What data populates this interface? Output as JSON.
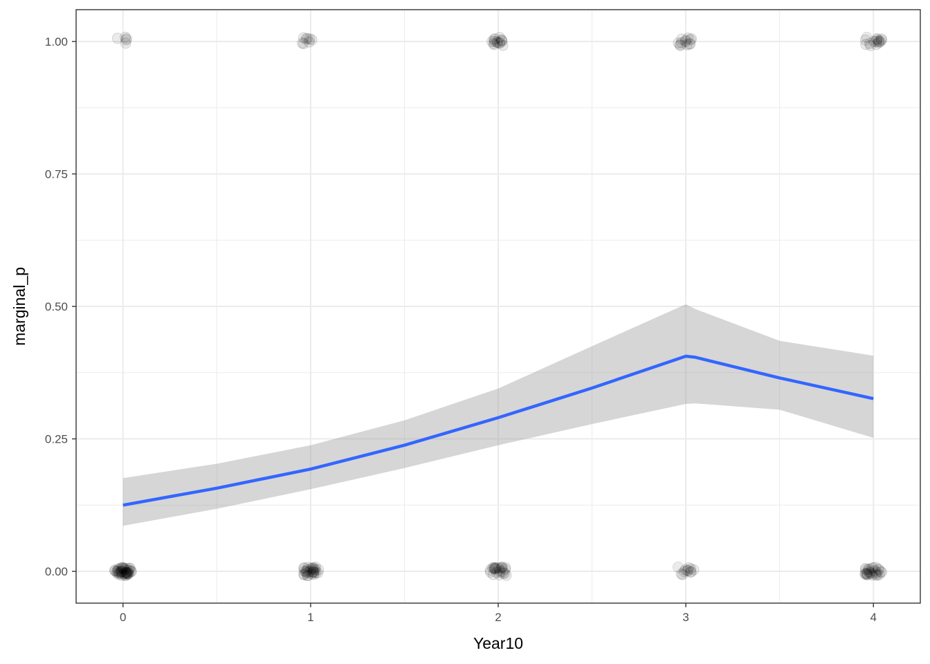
{
  "chart_data": {
    "type": "scatter",
    "title": "",
    "xlabel": "Year10",
    "ylabel": "marginal_p",
    "xlim": [
      -0.25,
      4.25
    ],
    "ylim": [
      -0.06,
      1.06
    ],
    "x_ticks": [
      {
        "value": 0,
        "label": "0"
      },
      {
        "value": 1,
        "label": "1"
      },
      {
        "value": 2,
        "label": "2"
      },
      {
        "value": 3,
        "label": "3"
      },
      {
        "value": 4,
        "label": "4"
      }
    ],
    "y_ticks": [
      {
        "value": 0,
        "label": "0.00"
      },
      {
        "value": 0.25,
        "label": "0.25"
      },
      {
        "value": 0.5,
        "label": "0.50"
      },
      {
        "value": 0.75,
        "label": "0.75"
      },
      {
        "value": 1,
        "label": "1.00"
      }
    ],
    "minor_x": [
      0.5,
      1.5,
      2.5,
      3.5
    ],
    "minor_y": [
      0.125,
      0.375,
      0.625,
      0.875
    ],
    "grid": true,
    "points": {
      "color": "#000000",
      "alpha": 0.08,
      "groups": [
        {
          "x": 0,
          "y": 1,
          "count": 5
        },
        {
          "x": 0,
          "y": 0,
          "count": 45
        },
        {
          "x": 1,
          "y": 1,
          "count": 8
        },
        {
          "x": 1,
          "y": 0,
          "count": 30
        },
        {
          "x": 2,
          "y": 1,
          "count": 15
        },
        {
          "x": 2,
          "y": 0,
          "count": 24
        },
        {
          "x": 3,
          "y": 1,
          "count": 13
        },
        {
          "x": 3,
          "y": 0,
          "count": 12
        },
        {
          "x": 4,
          "y": 1,
          "count": 16
        },
        {
          "x": 4,
          "y": 0,
          "count": 28
        }
      ]
    },
    "smooth": {
      "color": "#3366FF",
      "band_color": "#999999",
      "x": [
        0,
        0.5,
        1,
        1.5,
        2,
        2.5,
        3,
        3.05,
        3.5,
        4
      ],
      "y": [
        0.125,
        0.157,
        0.193,
        0.238,
        0.29,
        0.346,
        0.406,
        0.404,
        0.365,
        0.326
      ],
      "upper": [
        0.176,
        0.203,
        0.238,
        0.285,
        0.345,
        0.425,
        0.504,
        0.495,
        0.435,
        0.407
      ],
      "lower": [
        0.086,
        0.118,
        0.155,
        0.195,
        0.238,
        0.278,
        0.316,
        0.317,
        0.305,
        0.252
      ]
    }
  }
}
